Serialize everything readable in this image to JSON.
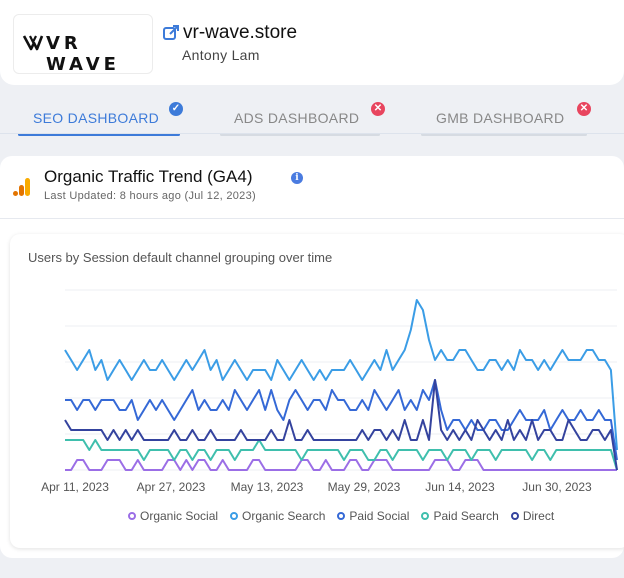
{
  "header": {
    "logo_text": "VR WAVE",
    "site": "vr-wave.store",
    "owner": "Antony Lam"
  },
  "tabs": [
    {
      "label": "SEO DASHBOARD",
      "active": true,
      "status": "check"
    },
    {
      "label": "ADS DASHBOARD",
      "active": false,
      "status": "error"
    },
    {
      "label": "GMB DASHBOARD",
      "active": false,
      "status": "error"
    }
  ],
  "card": {
    "title": "Organic Traffic Trend (GA4)",
    "last_updated": "Last Updated: 8 hours ago (Jul 12, 2023)"
  },
  "colors": {
    "accent": "#3d7bd9",
    "organic_social": "#9b6ee6",
    "organic_search": "#3b9de6",
    "paid_social": "#3569d6",
    "paid_search": "#3fbfad",
    "direct": "#34439e",
    "error": "#e8455e"
  },
  "chart_data": {
    "type": "line",
    "title": "Users by Session default channel grouping over time",
    "x_tick_labels": [
      "Apr 11, 2023",
      "Apr 27, 2023",
      "May 13, 2023",
      "May 29, 2023",
      "Jun 14, 2023",
      "Jun 30, 2023"
    ],
    "x_start": "2023-04-11",
    "x_end": "2023-07-11",
    "grid": true,
    "legend": "bottom",
    "series": [
      {
        "name": "Organic Social",
        "values": [
          0,
          0,
          1,
          1,
          0,
          0,
          0,
          1,
          1,
          1,
          0,
          0,
          1,
          0,
          0,
          0,
          0,
          1,
          1,
          0,
          1,
          0,
          1,
          1,
          0,
          0,
          1,
          0,
          0,
          0,
          0,
          1,
          1,
          0,
          0,
          0,
          0,
          0,
          0,
          1,
          1,
          0,
          0,
          1,
          0,
          0,
          0,
          1,
          1,
          0,
          0,
          1,
          1,
          1,
          0,
          0,
          0,
          0,
          0,
          0,
          0,
          1,
          1,
          1,
          0,
          0,
          1,
          1,
          1,
          0,
          0,
          0,
          0,
          0,
          0,
          0,
          0,
          0,
          0,
          0,
          0,
          0,
          0,
          0,
          0,
          0,
          0,
          0,
          0,
          0,
          0,
          0
        ]
      },
      {
        "name": "Organic Search",
        "values": [
          12,
          11,
          10,
          11,
          12,
          10,
          11,
          9,
          10,
          11,
          10,
          9,
          10,
          11,
          10,
          10,
          11,
          10,
          9,
          10,
          11,
          10,
          11,
          12,
          10,
          11,
          9,
          10,
          11,
          10,
          9,
          10,
          10,
          10,
          9,
          11,
          10,
          9,
          10,
          11,
          10,
          9,
          10,
          9,
          10,
          10,
          10,
          11,
          10,
          9,
          10,
          11,
          10,
          12,
          10,
          11,
          12,
          14,
          17,
          16,
          13,
          11,
          12,
          11,
          11,
          12,
          12,
          11,
          10,
          10,
          11,
          11,
          10,
          11,
          10,
          12,
          11,
          11,
          10,
          11,
          10,
          11,
          12,
          11,
          11,
          11,
          12,
          12,
          11,
          11,
          10,
          2
        ]
      },
      {
        "name": "Paid Social",
        "values": [
          7,
          7,
          6,
          7,
          7,
          6,
          7,
          7,
          7,
          6,
          6,
          7,
          5,
          6,
          7,
          6,
          7,
          6,
          5,
          6,
          7,
          8,
          6,
          7,
          6,
          6,
          7,
          6,
          8,
          7,
          6,
          7,
          8,
          6,
          8,
          6,
          5,
          7,
          8,
          7,
          6,
          7,
          7,
          6,
          8,
          7,
          7,
          6,
          6,
          7,
          6,
          8,
          7,
          6,
          7,
          8,
          6,
          7,
          6,
          8,
          7,
          9,
          6,
          4,
          5,
          5,
          4,
          5,
          4,
          4,
          5,
          5,
          4,
          4,
          5,
          6,
          5,
          5,
          5,
          6,
          4,
          5,
          6,
          5,
          5,
          6,
          5,
          5,
          6,
          5,
          5,
          1
        ]
      },
      {
        "name": "Paid Search",
        "values": [
          3,
          3,
          3,
          3,
          2,
          3,
          2,
          2,
          2,
          2,
          2,
          2,
          2,
          1,
          2,
          2,
          2,
          2,
          1,
          2,
          2,
          1,
          2,
          2,
          1,
          2,
          2,
          2,
          1,
          2,
          2,
          2,
          3,
          2,
          2,
          2,
          2,
          2,
          2,
          1,
          2,
          2,
          2,
          2,
          2,
          2,
          1,
          2,
          2,
          2,
          1,
          1,
          2,
          2,
          1,
          2,
          2,
          2,
          2,
          1,
          2,
          2,
          2,
          1,
          2,
          2,
          2,
          1,
          2,
          2,
          2,
          1,
          2,
          2,
          2,
          2,
          2,
          1,
          2,
          2,
          1,
          2,
          2,
          2,
          2,
          2,
          2,
          2,
          2,
          2,
          2,
          0
        ]
      },
      {
        "name": "Direct",
        "values": [
          5,
          4,
          4,
          4,
          4,
          4,
          4,
          3,
          4,
          3,
          4,
          3,
          4,
          3,
          3,
          3,
          3,
          3,
          4,
          3,
          3,
          4,
          3,
          3,
          4,
          3,
          3,
          3,
          3,
          4,
          3,
          3,
          3,
          3,
          4,
          3,
          3,
          5,
          3,
          3,
          4,
          3,
          3,
          3,
          3,
          3,
          3,
          3,
          3,
          4,
          3,
          4,
          4,
          3,
          4,
          3,
          5,
          3,
          3,
          5,
          3,
          9,
          4,
          3,
          4,
          3,
          4,
          3,
          5,
          4,
          3,
          4,
          3,
          5,
          3,
          4,
          3,
          5,
          3,
          4,
          4,
          3,
          3,
          5,
          4,
          3,
          3,
          4,
          4,
          3,
          4,
          0
        ]
      }
    ]
  }
}
